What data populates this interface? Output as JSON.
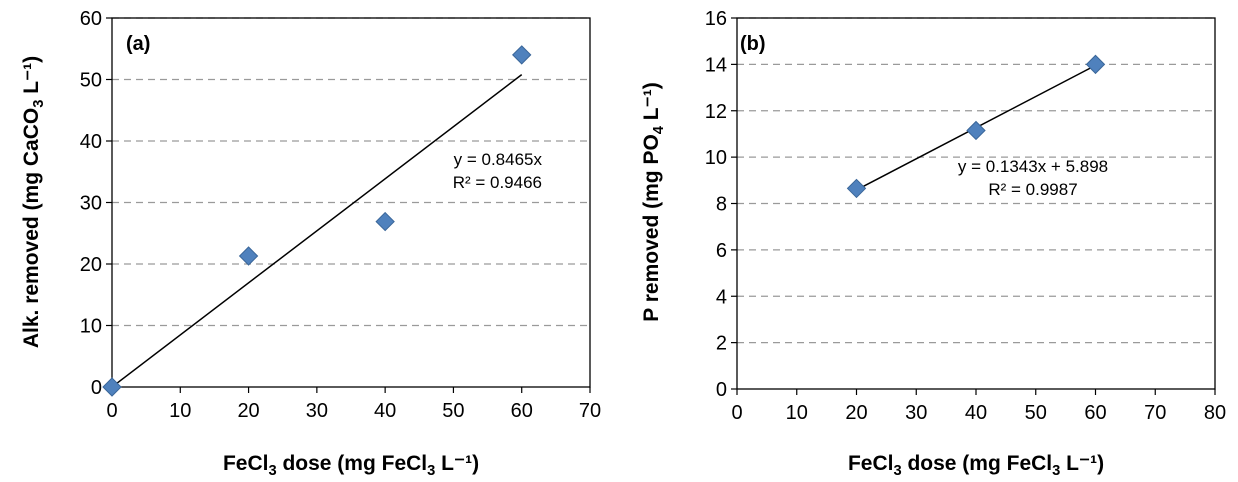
{
  "chart_data": [
    {
      "type": "scatter",
      "panel_label": "(a)",
      "xlabel": [
        "FeCl",
        "3",
        " dose (mg FeCl",
        "3",
        " L⁻¹)"
      ],
      "ylabel": [
        "Alk. removed (mg CaCO",
        "3",
        " L⁻¹)"
      ],
      "xlim": [
        0,
        70
      ],
      "ylim": [
        0,
        60
      ],
      "xticks": [
        "0",
        "10",
        "20",
        "30",
        "40",
        "50",
        "60",
        "70"
      ],
      "yticks": [
        "0",
        "10",
        "20",
        "30",
        "40",
        "50",
        "60"
      ],
      "grid": "horizontal-dashed",
      "points": {
        "x": [
          0,
          20,
          40,
          60
        ],
        "y": [
          0,
          21.3,
          26.9,
          54
        ]
      },
      "trendline": {
        "slope": 0.8465,
        "intercept": 0,
        "x_range": [
          0,
          60
        ]
      },
      "equation": "y = 0.8465x",
      "r2": "R² = 0.9466",
      "marker_color": "#4f81bd"
    },
    {
      "type": "scatter",
      "panel_label": "(b)",
      "xlabel": [
        "FeCl",
        "3",
        " dose (mg FeCl",
        "3",
        " L⁻¹)"
      ],
      "ylabel": [
        "P removed (mg PO",
        "4",
        " L⁻¹)"
      ],
      "xlim": [
        0,
        80
      ],
      "ylim": [
        0,
        16
      ],
      "xticks": [
        "0",
        "10",
        "20",
        "30",
        "40",
        "50",
        "60",
        "70",
        "80"
      ],
      "yticks": [
        "0",
        "2",
        "4",
        "6",
        "8",
        "10",
        "12",
        "14",
        "16"
      ],
      "grid": "horizontal-dashed",
      "points": {
        "x": [
          20,
          40,
          60
        ],
        "y": [
          8.65,
          11.15,
          14.0
        ]
      },
      "trendline": {
        "slope": 0.1343,
        "intercept": 5.898,
        "x_range": [
          20,
          60
        ]
      },
      "equation": "y = 0.1343x + 5.898",
      "r2": "R² = 0.9987",
      "marker_color": "#4f81bd"
    }
  ]
}
